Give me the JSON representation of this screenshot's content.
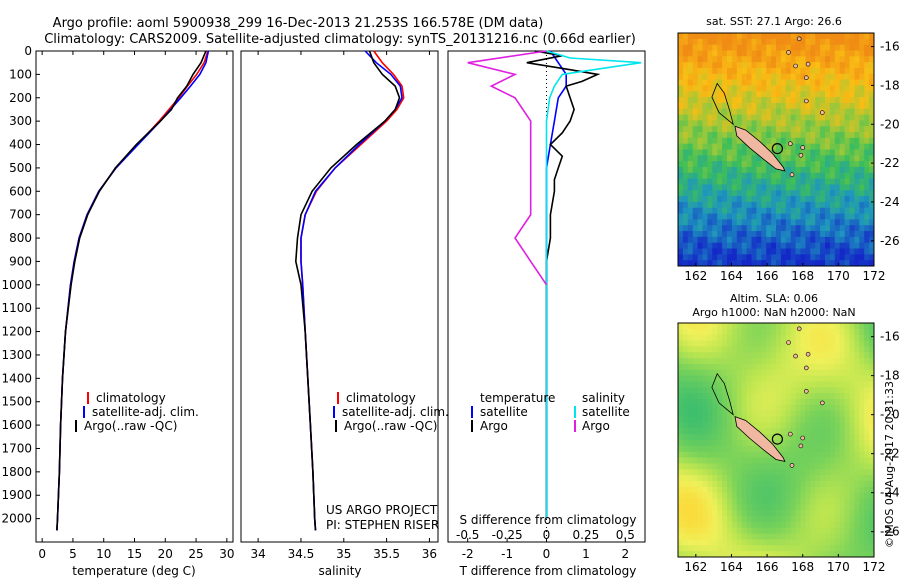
{
  "header": {
    "line1": "Argo profile: aoml 5900938_299 16-Dec-2013 21.253S 166.578E (DM data)",
    "line2": "Climatology: CARS2009. Satellite-adjusted climatology: synTS_20131216.nc (0.66d earlier)"
  },
  "credits": {
    "project": "US ARGO PROJECT",
    "pi": "PI: STEPHEN RISER"
  },
  "watermark": "©IMOS 04-Aug-2017 20:31:33",
  "colors": {
    "climatology": "#ff0000",
    "satellite": "#0000ff",
    "argo": "#000000",
    "sat_salinity": "#00e5ee",
    "argo_salinity": "#e020e0"
  },
  "map_titles": {
    "sst": "sat. SST: 27.1 Argo: 26.6",
    "sla1": "Altim. SLA: 0.06",
    "sla2": "Argo h1000: NaN h2000: NaN"
  },
  "chart_data": [
    {
      "type": "line",
      "id": "temperature",
      "xlabel": "temperature (deg C)",
      "ylabel": "",
      "xlim": [
        -1,
        31
      ],
      "ylim": [
        2100,
        0
      ],
      "xticks": [
        0,
        5,
        10,
        15,
        20,
        25,
        30
      ],
      "yticks": [
        0,
        100,
        200,
        300,
        400,
        500,
        600,
        700,
        800,
        900,
        1000,
        1100,
        1200,
        1300,
        1400,
        1500,
        1600,
        1700,
        1800,
        1900,
        2000
      ],
      "legend": [
        "climatology",
        "satellite-adj. clim.",
        "Argo(..raw -QC)"
      ],
      "series": [
        {
          "name": "climatology",
          "color": "#ff0000",
          "depth": [
            0,
            50,
            100,
            150,
            200,
            300,
            400,
            500,
            600,
            700,
            800,
            900,
            1000,
            1200,
            1400,
            1600,
            1800,
            2000,
            2050
          ],
          "values": [
            26.9,
            26.3,
            25.1,
            23.6,
            22.2,
            19.0,
            15.5,
            12.0,
            9.2,
            7.3,
            6.0,
            5.2,
            4.6,
            3.8,
            3.3,
            3.0,
            2.8,
            2.5,
            2.4
          ]
        },
        {
          "name": "satellite-adj. clim.",
          "color": "#0000ff",
          "depth": [
            0,
            50,
            100,
            150,
            200,
            300,
            400,
            500,
            600,
            700,
            800,
            900,
            1000,
            1200,
            1400,
            1600,
            1800,
            2000,
            2050
          ],
          "values": [
            27.0,
            26.6,
            25.6,
            24.1,
            22.5,
            19.2,
            15.6,
            12.0,
            9.2,
            7.3,
            6.0,
            5.2,
            4.6,
            3.8,
            3.3,
            3.0,
            2.8,
            2.5,
            2.4
          ]
        },
        {
          "name": "Argo(..raw -QC)",
          "color": "#000000",
          "depth": [
            0,
            50,
            100,
            150,
            200,
            250,
            300,
            400,
            500,
            600,
            700,
            800,
            900,
            1000,
            1200,
            1400,
            1600,
            1800,
            2000,
            2050
          ],
          "values": [
            26.6,
            25.8,
            24.5,
            23.5,
            22.0,
            21.0,
            19.2,
            15.3,
            11.9,
            9.3,
            7.4,
            6.1,
            5.3,
            4.7,
            3.8,
            3.3,
            3.0,
            2.8,
            2.5,
            2.4
          ]
        }
      ]
    },
    {
      "type": "line",
      "id": "salinity",
      "xlabel": "salinity",
      "ylabel": "",
      "xlim": [
        33.8,
        36.1
      ],
      "ylim": [
        2100,
        0
      ],
      "xticks": [
        34,
        34.5,
        35,
        35.5,
        36
      ],
      "legend": [
        "climatology",
        "satellite-adj. clim.",
        "Argo(..raw -QC)"
      ],
      "series": [
        {
          "name": "climatology",
          "color": "#ff0000",
          "depth": [
            0,
            50,
            100,
            150,
            200,
            250,
            300,
            400,
            500,
            600,
            700,
            800,
            900,
            1000,
            1200,
            1400,
            1600,
            1800,
            2000,
            2050
          ],
          "values": [
            35.35,
            35.45,
            35.58,
            35.68,
            35.7,
            35.62,
            35.5,
            35.2,
            34.9,
            34.68,
            34.55,
            34.5,
            34.5,
            34.52,
            34.55,
            34.58,
            34.61,
            34.64,
            34.66,
            34.67
          ]
        },
        {
          "name": "satellite-adj. clim.",
          "color": "#0000ff",
          "depth": [
            0,
            50,
            100,
            150,
            200,
            250,
            300,
            400,
            500,
            600,
            700,
            800,
            900,
            1000,
            1200,
            1400,
            1600,
            1800,
            2000,
            2050
          ],
          "values": [
            35.25,
            35.38,
            35.55,
            35.66,
            35.68,
            35.6,
            35.48,
            35.18,
            34.9,
            34.67,
            34.55,
            34.5,
            34.5,
            34.52,
            34.55,
            34.58,
            34.61,
            34.64,
            34.66,
            34.67
          ]
        },
        {
          "name": "Argo(..raw -QC)",
          "color": "#000000",
          "depth": [
            0,
            50,
            100,
            150,
            200,
            250,
            300,
            400,
            500,
            600,
            700,
            800,
            900,
            1000,
            1200,
            1400,
            1600,
            1800,
            2000,
            2050
          ],
          "values": [
            35.3,
            35.35,
            35.45,
            35.6,
            35.65,
            35.6,
            35.48,
            35.15,
            34.85,
            34.63,
            34.5,
            34.46,
            34.44,
            34.5,
            34.55,
            34.58,
            34.61,
            34.64,
            34.66,
            34.67
          ]
        }
      ]
    },
    {
      "type": "line",
      "id": "difference",
      "xlabel": "T difference from climatology",
      "xlabel2": "S difference from climatology",
      "xlim": [
        -2.5,
        2.5
      ],
      "ylim": [
        2100,
        0
      ],
      "xticks": [
        -2,
        -1,
        0,
        1,
        2
      ],
      "xticks2": [
        -0.5,
        -0.25,
        0,
        0.25,
        0.5
      ],
      "legend_headers": [
        "temperature",
        "salinity"
      ],
      "legend": [
        "satellite",
        "Argo",
        "satellite",
        "Argo"
      ],
      "series": [
        {
          "name": "temperature satellite",
          "color": "#0000ff",
          "depth": [
            0,
            50,
            100,
            150,
            200,
            300,
            400,
            500,
            600,
            800,
            1000,
            1200,
            1500,
            2000
          ],
          "values": [
            0.1,
            0.3,
            0.5,
            0.5,
            0.3,
            0.2,
            0.1,
            0.0,
            0.0,
            0.0,
            0.0,
            0.0,
            0.0,
            0.0
          ]
        },
        {
          "name": "temperature Argo",
          "color": "#000000",
          "depth": [
            0,
            20,
            50,
            80,
            100,
            130,
            150,
            200,
            250,
            300,
            350,
            400,
            450,
            500,
            550,
            600,
            700,
            800,
            900,
            1000,
            1200,
            1500,
            2000
          ],
          "values": [
            -0.3,
            0.4,
            -0.5,
            0.6,
            1.3,
            0.9,
            0.5,
            0.6,
            0.7,
            0.6,
            0.4,
            0.1,
            0.4,
            0.3,
            0.2,
            0.2,
            0.1,
            0.1,
            0.0,
            0.0,
            0.0,
            0.0,
            0.0
          ]
        },
        {
          "name": "salinity satellite",
          "color": "#00e5ee",
          "depth": [
            0,
            30,
            50,
            80,
            100,
            150,
            200,
            300,
            500,
            800,
            1000,
            1500,
            2000
          ],
          "values": [
            0.0,
            0.15,
            0.6,
            0.3,
            0.1,
            0.05,
            0.02,
            0.0,
            0.0,
            0.0,
            0.0,
            0.0,
            0.0
          ]
        },
        {
          "name": "salinity Argo",
          "color": "#e020e0",
          "depth": [
            0,
            50,
            100,
            150,
            200,
            300,
            400,
            500,
            600,
            700,
            800,
            900,
            1000
          ],
          "values": [
            0.0,
            -0.5,
            -0.2,
            -0.35,
            -0.2,
            -0.1,
            -0.1,
            -0.1,
            -0.1,
            -0.1,
            -0.2,
            -0.1,
            0.0
          ]
        }
      ]
    },
    {
      "type": "heatmap",
      "id": "sst_map",
      "title": "sat. SST: 27.1 Argo: 26.6",
      "xlim": [
        161,
        172
      ],
      "ylim": [
        -27.3,
        -15.3
      ],
      "xticks": [
        162,
        164,
        166,
        168,
        170,
        172
      ],
      "yticks": [
        -16,
        -18,
        -20,
        -22,
        -24,
        -26
      ],
      "marker": {
        "lon": 166.578,
        "lat": -21.253
      }
    },
    {
      "type": "heatmap",
      "id": "sla_map",
      "title": "Altim. SLA: 0.06",
      "subtitle": "Argo h1000: NaN h2000: NaN",
      "xlim": [
        161,
        172
      ],
      "ylim": [
        -27.3,
        -15.3
      ],
      "xticks": [
        162,
        164,
        166,
        168,
        170,
        172
      ],
      "yticks": [
        -16,
        -18,
        -20,
        -22,
        -24,
        -26
      ],
      "marker": {
        "lon": 166.578,
        "lat": -21.253
      }
    }
  ]
}
